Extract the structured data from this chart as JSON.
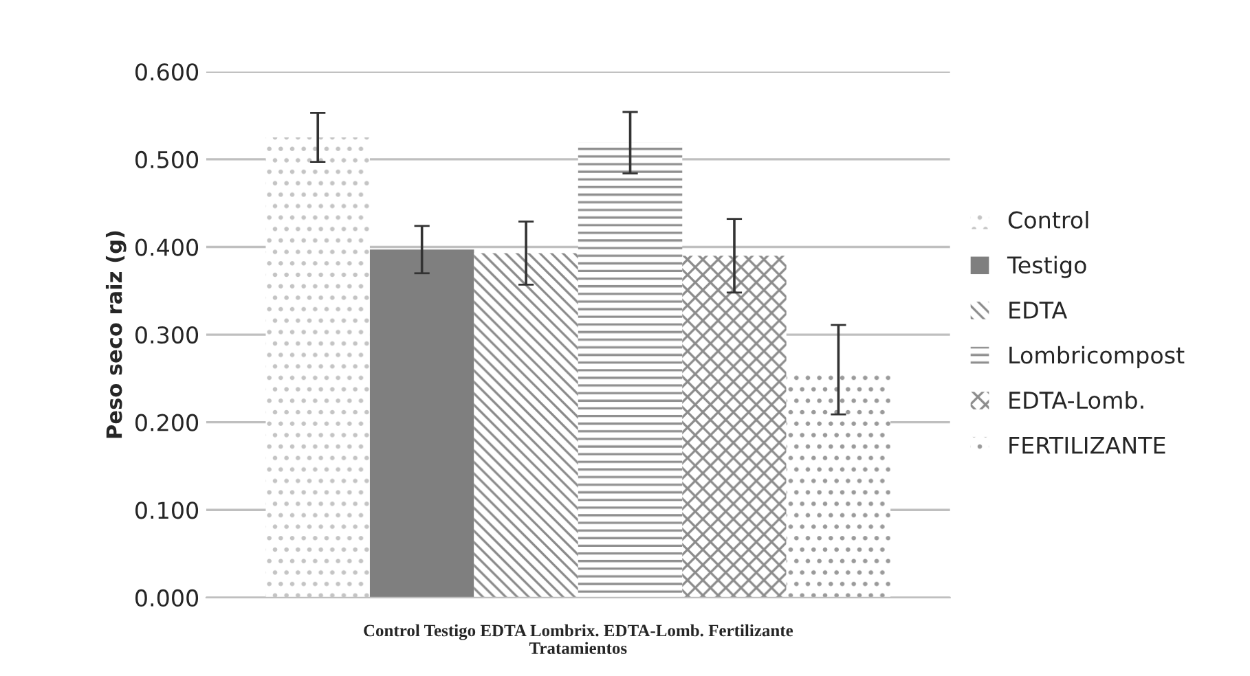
{
  "chart_data": {
    "type": "bar",
    "ylabel": "Peso seco raiz (g)",
    "xlabel": "Tratamientos",
    "categories": [
      "Control Testigo EDTA Lombrix. EDTA-Lomb. Fertilizante"
    ],
    "series": [
      {
        "name": "Control",
        "color": "#c4c4c4",
        "values": [
          0.525
        ],
        "errors": [
          0.028
        ]
      },
      {
        "name": "Testigo",
        "color": "#7f7f7f",
        "values": [
          0.397
        ],
        "errors": [
          0.027
        ]
      },
      {
        "name": "EDTA",
        "color": "#8a8a8a",
        "values": [
          0.393
        ],
        "errors": [
          0.036
        ]
      },
      {
        "name": "Lombricompost",
        "color": "#8f8f8f",
        "values": [
          0.519
        ],
        "errors": [
          0.035
        ]
      },
      {
        "name": "EDTA-Lomb.",
        "color": "#8c8c8c",
        "values": [
          0.39
        ],
        "errors": [
          0.042
        ]
      },
      {
        "name": "FERTILIZANTE",
        "color": "#9a9a9a",
        "values": [
          0.26
        ],
        "errors": [
          0.051
        ]
      }
    ],
    "ylim": [
      0,
      0.6
    ],
    "yticks": [
      {
        "value": 0,
        "label": "0.000"
      },
      {
        "value": 0.1,
        "label": "0.100"
      },
      {
        "value": 0.2,
        "label": "0.200"
      },
      {
        "value": 0.3,
        "label": "0.300"
      },
      {
        "value": 0.4,
        "label": "0.400"
      },
      {
        "value": 0.5,
        "label": "0.500"
      },
      {
        "value": 0.6,
        "label": "0.600"
      }
    ],
    "grid": "y",
    "legend": "right"
  }
}
